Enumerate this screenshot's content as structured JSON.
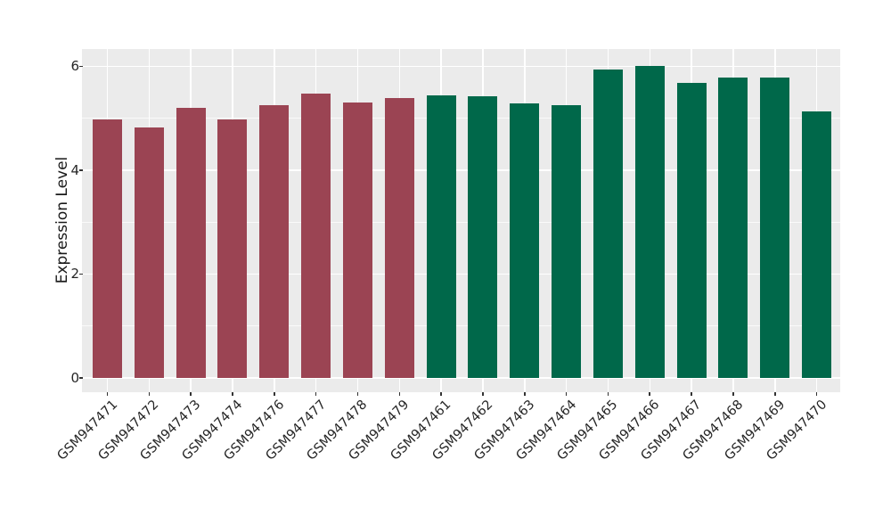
{
  "chart_data": {
    "type": "bar",
    "title": "",
    "xlabel": "",
    "ylabel": "Expression Level",
    "ylim": [
      0,
      6.35
    ],
    "yticks_major": [
      0,
      2,
      4,
      6
    ],
    "yticks_minor": [
      1,
      3,
      5
    ],
    "grid": "on",
    "legend_position": "none",
    "categories": [
      "GSM947471",
      "GSM947472",
      "GSM947473",
      "GSM947474",
      "GSM947476",
      "GSM947477",
      "GSM947478",
      "GSM947479",
      "GSM947461",
      "GSM947462",
      "GSM947463",
      "GSM947464",
      "GSM947465",
      "GSM947466",
      "GSM947467",
      "GSM947468",
      "GSM947469",
      "GSM947470"
    ],
    "values": [
      4.98,
      4.83,
      5.21,
      4.98,
      5.25,
      5.47,
      5.31,
      5.39,
      5.44,
      5.43,
      5.28,
      5.26,
      5.94,
      6.01,
      5.68,
      5.79,
      5.78,
      5.13
    ],
    "bar_colors": [
      "#9B4453",
      "#9B4453",
      "#9B4453",
      "#9B4453",
      "#9B4453",
      "#9B4453",
      "#9B4453",
      "#9B4453",
      "#00684A",
      "#00684A",
      "#00684A",
      "#00684A",
      "#00684A",
      "#00684A",
      "#00684A",
      "#00684A",
      "#00684A",
      "#00684A"
    ],
    "colors": {
      "maroon_bars": "#9B4453",
      "green_bars": "#00684A",
      "panel_background": "#EBEBEB",
      "gridline": "#FFFFFF",
      "tick_mark": "#333333",
      "axis_text": "#262626",
      "figure_background": "#FFFFFF"
    }
  }
}
